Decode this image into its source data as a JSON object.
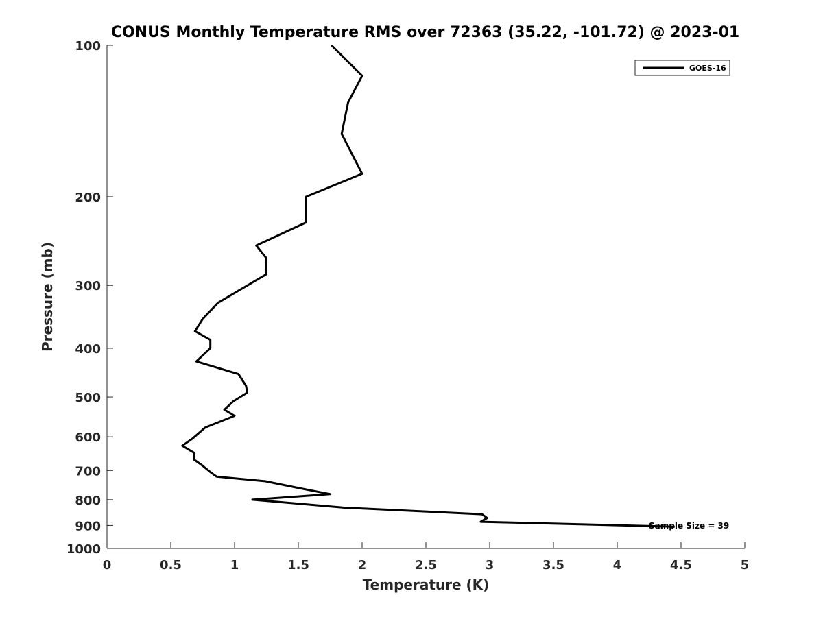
{
  "chart_data": {
    "type": "line",
    "title": "CONUS Monthly Temperature RMS over 72363 (35.22, -101.72) @ 2023-01",
    "xlabel": "Temperature (K)",
    "ylabel": "Pressure (mb)",
    "xlim": [
      0,
      5
    ],
    "ylim": [
      100,
      1000
    ],
    "yscale": "log",
    "y_reversed": true,
    "grid": false,
    "x_ticks": [
      0,
      0.5,
      1,
      1.5,
      2,
      2.5,
      3,
      3.5,
      4,
      4.5,
      5
    ],
    "x_tick_labels": [
      "0",
      "0.5",
      "1",
      "1.5",
      "2",
      "2.5",
      "3",
      "3.5",
      "4",
      "4.5",
      "5"
    ],
    "y_ticks": [
      100,
      200,
      300,
      400,
      500,
      600,
      700,
      800,
      900,
      1000
    ],
    "y_tick_labels": [
      "100",
      "200",
      "300",
      "400",
      "500",
      "600",
      "700",
      "800",
      "900",
      "1000"
    ],
    "legend": {
      "placement": "top-right",
      "entries": [
        "GOES-16"
      ]
    },
    "annotation": "Sample Size = 39",
    "series": [
      {
        "name": "GOES-16",
        "color": "#000000",
        "points": [
          [
            1.76,
            100
          ],
          [
            2.0,
            115
          ],
          [
            1.89,
            130
          ],
          [
            1.84,
            150
          ],
          [
            2.0,
            180
          ],
          [
            1.56,
            200
          ],
          [
            1.56,
            225
          ],
          [
            1.17,
            250
          ],
          [
            1.25,
            265
          ],
          [
            1.25,
            285
          ],
          [
            0.87,
            325
          ],
          [
            0.75,
            350
          ],
          [
            0.69,
            370
          ],
          [
            0.81,
            385
          ],
          [
            0.81,
            400
          ],
          [
            0.7,
            425
          ],
          [
            1.03,
            450
          ],
          [
            1.09,
            475
          ],
          [
            1.1,
            490
          ],
          [
            0.99,
            510
          ],
          [
            0.92,
            530
          ],
          [
            1.0,
            545
          ],
          [
            0.77,
            575
          ],
          [
            0.67,
            605
          ],
          [
            0.59,
            625
          ],
          [
            0.68,
            645
          ],
          [
            0.68,
            665
          ],
          [
            0.75,
            685
          ],
          [
            0.81,
            705
          ],
          [
            0.86,
            720
          ],
          [
            1.24,
            735
          ],
          [
            1.52,
            760
          ],
          [
            1.75,
            780
          ],
          [
            1.14,
            800
          ],
          [
            1.87,
            830
          ],
          [
            2.94,
            855
          ],
          [
            2.98,
            870
          ],
          [
            2.93,
            885
          ],
          [
            4.45,
            905
          ]
        ]
      }
    ]
  }
}
